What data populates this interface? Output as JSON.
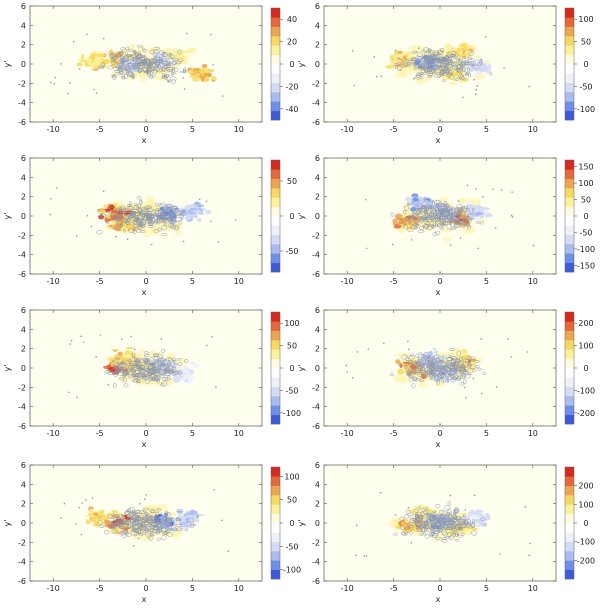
{
  "chart_data": [
    {
      "type": "heatmap",
      "xlabel": "x",
      "ylabel": "y'",
      "xlim": [
        -12.5,
        12.5
      ],
      "ylim": [
        -6,
        6
      ],
      "x_ticks": [
        "-10",
        "-5",
        "0",
        "5",
        "10"
      ],
      "y_ticks": [
        "6",
        "4",
        "2",
        "0",
        "-2",
        "-4",
        "-6"
      ],
      "colorbar": {
        "range": [
          -50,
          50
        ],
        "ticks": [
          "40",
          "20",
          "0",
          "-20",
          "-40"
        ]
      },
      "blobs": [
        [
          -3,
          0.5,
          30
        ],
        [
          -5.5,
          0.3,
          25
        ],
        [
          5.8,
          -0.9,
          30
        ],
        [
          -2,
          -0.3,
          -20
        ],
        [
          2,
          0.4,
          -18
        ],
        [
          3.6,
          0.8,
          15
        ]
      ]
    },
    {
      "type": "heatmap",
      "xlabel": "x",
      "ylabel": "y'",
      "xlim": [
        -12.5,
        12.5
      ],
      "ylim": [
        -6,
        6
      ],
      "x_ticks": [
        "-10",
        "-5",
        "0",
        "5",
        "10"
      ],
      "y_ticks": [
        "6",
        "4",
        "2",
        "0",
        "-2",
        "-4",
        "-6"
      ],
      "colorbar": {
        "range": [
          -125,
          125
        ],
        "ticks": [
          "100",
          "50",
          "0",
          "-50",
          "-100"
        ]
      },
      "blobs": [
        [
          -4,
          0.5,
          70
        ],
        [
          -1.5,
          0,
          -90
        ],
        [
          2.5,
          1.2,
          60
        ],
        [
          1.5,
          -0.8,
          50
        ],
        [
          4,
          -0.2,
          -50
        ]
      ]
    },
    {
      "type": "heatmap",
      "xlabel": "x",
      "ylabel": "y'",
      "xlim": [
        -12.5,
        12.5
      ],
      "ylim": [
        -6,
        6
      ],
      "x_ticks": [
        "-10",
        "-5",
        "0",
        "5",
        "10"
      ],
      "y_ticks": [
        "6",
        "4",
        "2",
        "0",
        "-2",
        "-4",
        "-6"
      ],
      "colorbar": {
        "range": [
          -80,
          80
        ],
        "ticks": [
          "50",
          "0",
          "-50"
        ]
      },
      "blobs": [
        [
          -3.5,
          0.3,
          70
        ],
        [
          -2.5,
          -0.8,
          50
        ],
        [
          2.5,
          0.3,
          -60
        ],
        [
          5,
          0.5,
          -40
        ]
      ]
    },
    {
      "type": "heatmap",
      "xlabel": "x",
      "ylabel": "y'",
      "xlim": [
        -12.5,
        12.5
      ],
      "ylim": [
        -6,
        6
      ],
      "x_ticks": [
        "-10",
        "-5",
        "0",
        "5",
        "10"
      ],
      "y_ticks": [
        "6",
        "4",
        "2",
        "0",
        "-2",
        "-4",
        "-6"
      ],
      "colorbar": {
        "range": [
          -170,
          170
        ],
        "ticks": [
          "150",
          "100",
          "50",
          "0",
          "-50",
          "-100",
          "-150"
        ]
      },
      "blobs": [
        [
          -3.5,
          -0.5,
          120
        ],
        [
          2,
          -0.3,
          140
        ],
        [
          -2,
          1.2,
          -100
        ],
        [
          0.5,
          0.5,
          -90
        ],
        [
          4,
          0.5,
          -70
        ]
      ]
    },
    {
      "type": "heatmap",
      "xlabel": "x",
      "ylabel": "y'",
      "xlim": [
        -12.5,
        12.5
      ],
      "ylim": [
        -6,
        6
      ],
      "x_ticks": [
        "-10",
        "-5",
        "0",
        "5",
        "10"
      ],
      "y_ticks": [
        "6",
        "4",
        "2",
        "0",
        "-2",
        "-4",
        "-6"
      ],
      "colorbar": {
        "range": [
          -125,
          125
        ],
        "ticks": [
          "100",
          "50",
          "0",
          "-50",
          "-100"
        ]
      },
      "blobs": [
        [
          -2.8,
          0.2,
          110
        ],
        [
          -2,
          1,
          60
        ],
        [
          2,
          0,
          -60
        ],
        [
          4,
          -0.5,
          -30
        ]
      ]
    },
    {
      "type": "heatmap",
      "xlabel": "x",
      "ylabel": "y'",
      "xlim": [
        -12.5,
        12.5
      ],
      "ylim": [
        -6,
        6
      ],
      "x_ticks": [
        "-10",
        "-5",
        "0",
        "5",
        "10"
      ],
      "y_ticks": [
        "6",
        "4",
        "2",
        "0",
        "-2",
        "-4",
        "-6"
      ],
      "colorbar": {
        "range": [
          -250,
          250
        ],
        "ticks": [
          "200",
          "100",
          "0",
          "-100",
          "-200"
        ]
      },
      "blobs": [
        [
          -3,
          0,
          180
        ],
        [
          2.5,
          0.5,
          160
        ],
        [
          -1,
          0.8,
          -120
        ],
        [
          0.5,
          -0.5,
          -110
        ]
      ]
    },
    {
      "type": "heatmap",
      "xlabel": "x",
      "ylabel": "y'",
      "xlim": [
        -12.5,
        12.5
      ],
      "ylim": [
        -6,
        6
      ],
      "x_ticks": [
        "-10",
        "-5",
        "0",
        "5",
        "10"
      ],
      "y_ticks": [
        "6",
        "4",
        "2",
        "0",
        "-2",
        "-4",
        "-6"
      ],
      "colorbar": {
        "range": [
          -120,
          120
        ],
        "ticks": [
          "100",
          "50",
          "0",
          "-50",
          "-100"
        ]
      },
      "blobs": [
        [
          -3,
          0,
          110
        ],
        [
          -5,
          0.5,
          60
        ],
        [
          2,
          0,
          -90
        ],
        [
          4.5,
          0.5,
          -60
        ]
      ]
    },
    {
      "type": "heatmap",
      "xlabel": "x",
      "ylabel": "y'",
      "xlim": [
        -12.5,
        12.5
      ],
      "ylim": [
        -6,
        6
      ],
      "x_ticks": [
        "-10",
        "-5",
        "0",
        "5",
        "10"
      ],
      "y_ticks": [
        "6",
        "4",
        "2",
        "0",
        "-2",
        "-4",
        "-6"
      ],
      "colorbar": {
        "range": [
          -300,
          300
        ],
        "ticks": [
          "200",
          "100",
          "0",
          "-100",
          "-200"
        ]
      },
      "blobs": [
        [
          -3,
          0,
          200
        ],
        [
          -2,
          1,
          120
        ],
        [
          2,
          -0.5,
          130
        ],
        [
          0,
          0.3,
          -200
        ],
        [
          4,
          0.5,
          -100
        ]
      ]
    }
  ],
  "colors": {
    "background": "#fffff0",
    "scale": [
      "#3b5bdb",
      "#6f8ee8",
      "#a9bcef",
      "#d4dcf5",
      "#eef1fa",
      "#ffffff",
      "#fffbe0",
      "#fdf09a",
      "#f5d960",
      "#eea550",
      "#e36a38",
      "#d42a20"
    ],
    "contour": "#8f97a8"
  }
}
